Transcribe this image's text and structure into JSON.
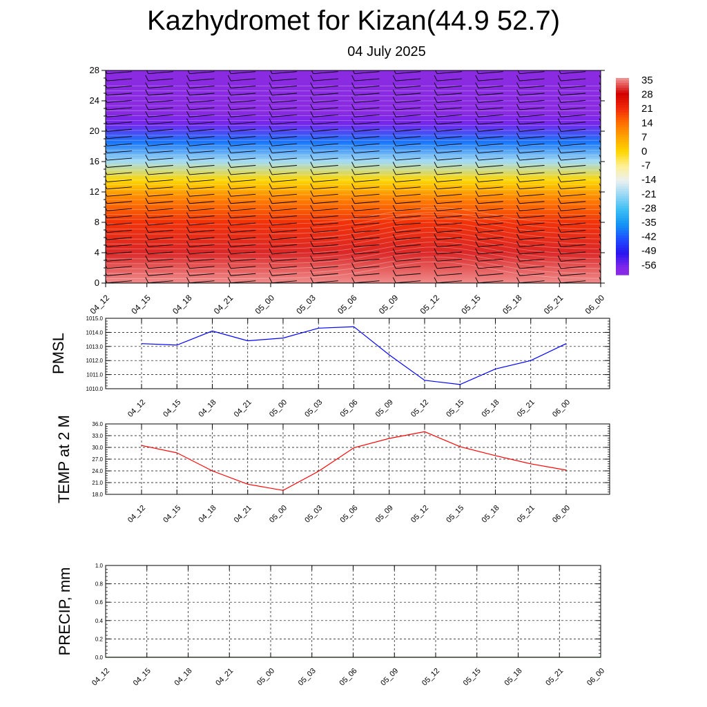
{
  "header": {
    "title": "Kazhydromet for Kizan(44.9 52.7)",
    "subtitle": "04 July 2025"
  },
  "chart_data": [
    {
      "type": "heatmap",
      "title": "",
      "x_tick_labels": [
        "04_12",
        "04_15",
        "04_18",
        "04_21",
        "05_00",
        "05_03",
        "05_06",
        "05_09",
        "05_12",
        "05_15",
        "05_18",
        "05_21",
        "06_00"
      ],
      "y_ticks": [
        0,
        4,
        8,
        12,
        16,
        20,
        24,
        28
      ],
      "ylim": [
        0,
        28
      ],
      "colorbar_labels": [
        "35",
        "28",
        "21",
        "14",
        "7",
        "0",
        "-7",
        "-14",
        "-21",
        "-28",
        "-35",
        "-42",
        "-49",
        "-56"
      ],
      "z_profile": [
        {
          "y": 0,
          "value": 35
        },
        {
          "y": 4,
          "value": 30
        },
        {
          "y": 8,
          "value": 20
        },
        {
          "y": 11,
          "value": 12
        },
        {
          "y": 13.5,
          "value": 0
        },
        {
          "y": 16,
          "value": -20
        },
        {
          "y": 18.5,
          "value": -38
        },
        {
          "y": 21,
          "value": -55
        },
        {
          "y": 22.5,
          "value": -60
        },
        {
          "y": 28,
          "value": -60
        }
      ],
      "wind_barbs": true
    },
    {
      "type": "line",
      "ylabel": "PMSL",
      "x": [
        "04_12",
        "04_15",
        "04_18",
        "04_21",
        "05_00",
        "05_03",
        "05_06",
        "05_09",
        "05_12",
        "05_15",
        "05_18",
        "05_21",
        "06_00"
      ],
      "series": [
        {
          "values": [
            1013.2,
            1013.1,
            1014.1,
            1013.4,
            1013.6,
            1014.3,
            1014.4,
            1012.4,
            1010.6,
            1010.3,
            1011.4,
            1012.0,
            1013.2
          ]
        }
      ],
      "ylim": [
        1010.0,
        1015.0
      ],
      "y_tick_labels": [
        "1010.0",
        "1011.0",
        "1012.0",
        "1013.0",
        "1014.0",
        "1015.0"
      ],
      "color": "#0000ff",
      "grid": true
    },
    {
      "type": "line",
      "ylabel": "TEMP at 2 M",
      "x": [
        "04_12",
        "04_15",
        "04_18",
        "04_21",
        "05_00",
        "05_03",
        "05_06",
        "05_09",
        "05_12",
        "05_15",
        "05_18",
        "05_21",
        "06_00"
      ],
      "series": [
        {
          "values": [
            30.5,
            28.6,
            24.0,
            20.6,
            19.0,
            23.9,
            29.9,
            32.3,
            34.0,
            30.2,
            27.9,
            25.8,
            24.2
          ]
        }
      ],
      "ylim": [
        18.0,
        36.0
      ],
      "y_tick_labels": [
        "18.0",
        "21.0",
        "24.0",
        "27.0",
        "30.0",
        "33.0",
        "36.0"
      ],
      "color": "#ff0000",
      "grid": true
    },
    {
      "type": "line",
      "ylabel": "PRECIP, mm",
      "x": [
        "04_12",
        "04_15",
        "04_18",
        "04_21",
        "05_00",
        "05_03",
        "05_06",
        "05_09",
        "05_12",
        "05_15",
        "05_18",
        "05_21",
        "06_00"
      ],
      "series": [
        {
          "values": [
            0,
            0,
            0,
            0,
            0,
            0,
            0,
            0,
            0,
            0,
            0,
            0,
            0
          ]
        }
      ],
      "ylim": [
        0.0,
        1.0
      ],
      "y_tick_labels": [
        "0.0",
        "0.2",
        "0.4",
        "0.6",
        "0.8",
        "1.0"
      ],
      "color": "#006400",
      "grid": true
    }
  ]
}
